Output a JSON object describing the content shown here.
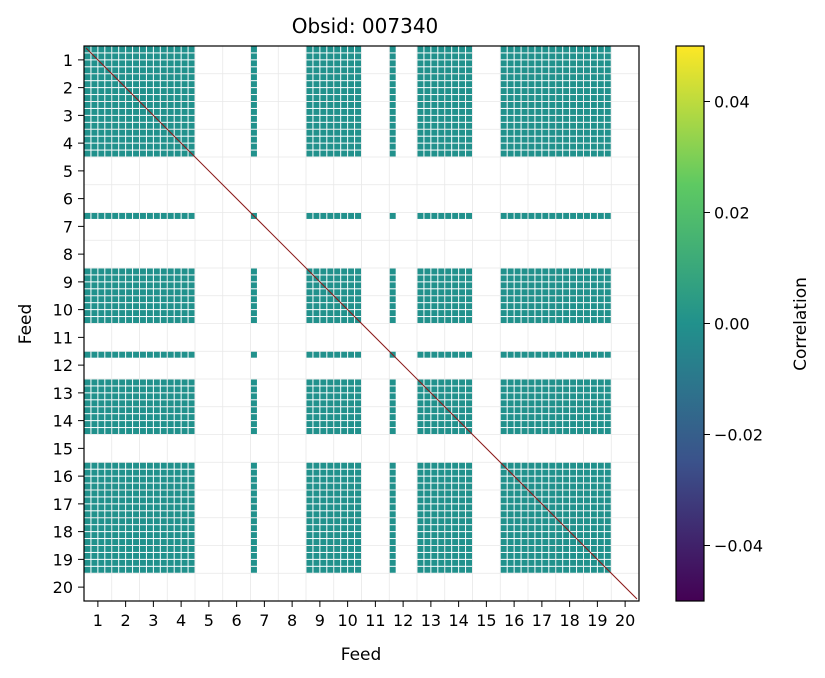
{
  "chart_data": {
    "type": "heatmap",
    "title": "Obsid: 007340",
    "xlabel": "Feed",
    "ylabel": "Feed",
    "x_ticks": [
      "1",
      "2",
      "3",
      "4",
      "5",
      "6",
      "7",
      "8",
      "9",
      "10",
      "11",
      "12",
      "13",
      "14",
      "15",
      "16",
      "17",
      "18",
      "19",
      "20"
    ],
    "y_ticks": [
      "1",
      "2",
      "3",
      "4",
      "5",
      "6",
      "7",
      "8",
      "9",
      "10",
      "11",
      "12",
      "13",
      "14",
      "15",
      "16",
      "17",
      "18",
      "19",
      "20"
    ],
    "feeds": 20,
    "blocks_per_feed": 4,
    "empty_feeds": [
      5,
      6,
      8,
      11,
      15,
      20
    ],
    "sparse_feeds": [
      7,
      12
    ],
    "cell_value": 0.0,
    "diagonal": "self-correlation line",
    "colorbar": {
      "label": "Correlation",
      "colormap": "viridis",
      "range": [
        -0.05,
        0.05
      ],
      "ticks": [
        {
          "value": 0.04,
          "label": "0.04"
        },
        {
          "value": 0.02,
          "label": "0.02"
        },
        {
          "value": 0.0,
          "label": "0.00"
        },
        {
          "value": -0.02,
          "label": "−0.02"
        },
        {
          "value": -0.04,
          "label": "−0.04"
        }
      ],
      "stops": [
        "#440154",
        "#3b528b",
        "#21918c",
        "#5ec962",
        "#fde725"
      ]
    },
    "colors": {
      "cell": "#21918c",
      "grid": "#e8e8e8",
      "diagonal": "#8b1a1a"
    }
  }
}
